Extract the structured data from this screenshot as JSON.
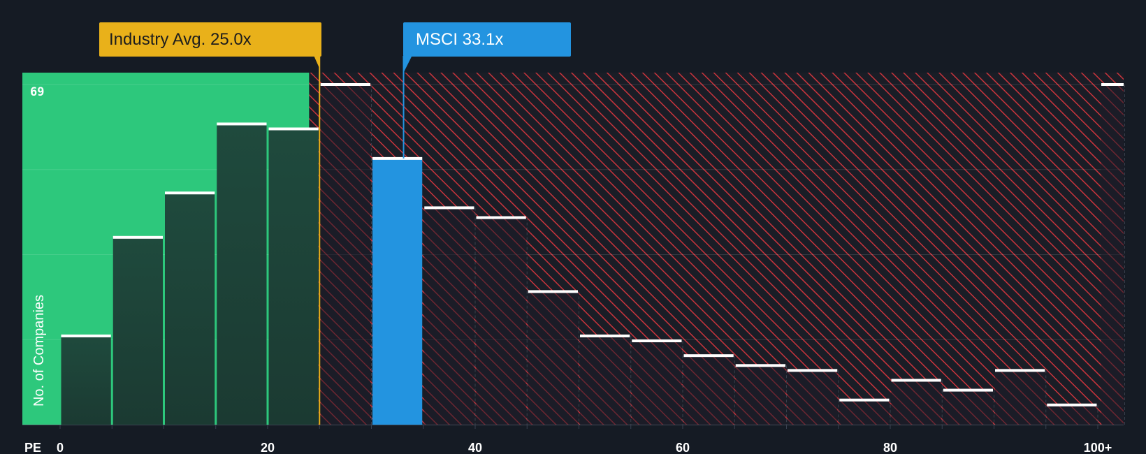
{
  "chart_data": {
    "type": "bar",
    "xlabel": "PE",
    "ylabel": "No. of Companies",
    "x_ticks": [
      "0",
      "20",
      "40",
      "60",
      "80",
      "100+"
    ],
    "x_tick_values": [
      0,
      20,
      40,
      60,
      80,
      100
    ],
    "y_tick_labels": [
      "69"
    ],
    "y_tick_values": [
      69
    ],
    "ylim": [
      0,
      69
    ],
    "xlim": [
      -3.6,
      102.5
    ],
    "bin_width": 5,
    "bins": [
      {
        "x0": 0,
        "x1": 5,
        "value": 18
      },
      {
        "x0": 5,
        "x1": 10,
        "value": 38
      },
      {
        "x0": 10,
        "x1": 15,
        "value": 47
      },
      {
        "x0": 15,
        "x1": 20,
        "value": 61
      },
      {
        "x0": 20,
        "x1": 25,
        "value": 60
      },
      {
        "x0": 25,
        "x1": 30,
        "value": 69
      },
      {
        "x0": 30,
        "x1": 35,
        "value": 54
      },
      {
        "x0": 35,
        "x1": 40,
        "value": 44
      },
      {
        "x0": 40,
        "x1": 45,
        "value": 42
      },
      {
        "x0": 45,
        "x1": 50,
        "value": 27
      },
      {
        "x0": 50,
        "x1": 55,
        "value": 18
      },
      {
        "x0": 55,
        "x1": 60,
        "value": 17
      },
      {
        "x0": 60,
        "x1": 65,
        "value": 14
      },
      {
        "x0": 65,
        "x1": 70,
        "value": 12
      },
      {
        "x0": 70,
        "x1": 75,
        "value": 11
      },
      {
        "x0": 75,
        "x1": 80,
        "value": 5
      },
      {
        "x0": 80,
        "x1": 85,
        "value": 9
      },
      {
        "x0": 85,
        "x1": 90,
        "value": 7
      },
      {
        "x0": 90,
        "x1": 95,
        "value": 11
      },
      {
        "x0": 95,
        "x1": 100,
        "value": 4
      },
      {
        "x0": 100,
        "x1": 102.5,
        "value": 69
      }
    ],
    "industry_avg": {
      "label": "Industry Avg. 25.0x",
      "value": 25.0
    },
    "company": {
      "label": "MSCI 33.1x",
      "value": 33.1
    },
    "grid": true,
    "colors": {
      "background": "#151b24",
      "undervalued_zone": "#2dc87c",
      "bar_dark": "#1d4a3c",
      "overvalued_hatch": "#c9343c",
      "bar_top": "#ffffff",
      "company_bar": "#2394e0",
      "industry_marker": "#e9b11a",
      "axis_text": "#ffffff"
    }
  }
}
